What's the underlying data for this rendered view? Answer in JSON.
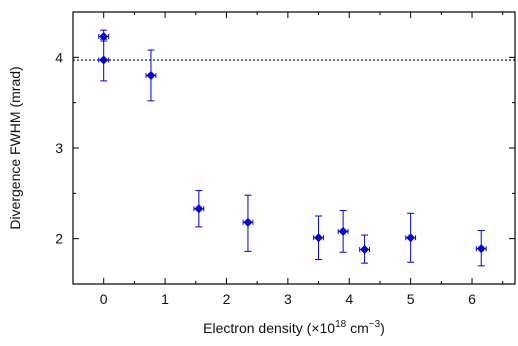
{
  "chart_data": {
    "type": "scatter",
    "xlabel_parts": {
      "prefix": "Electron density (×10",
      "exp1": "18",
      "mid": " cm",
      "exp2": "−3",
      "suffix": ")"
    },
    "ylabel": "Divergence FWHM (mrad)",
    "xlim": [
      -0.5,
      6.7
    ],
    "ylim": [
      1.5,
      4.5
    ],
    "x_ticks": [
      0,
      1,
      2,
      3,
      4,
      5,
      6
    ],
    "y_ticks": [
      2,
      3,
      4
    ],
    "reference_line": {
      "y": 3.97,
      "style": "dotted"
    },
    "grid": false,
    "series": [
      {
        "color": "#0000dd",
        "points": [
          {
            "x": 0.0,
            "y": 4.23,
            "yerr_low": 0.03,
            "yerr_high": 0.07,
            "xerr": 0.08
          },
          {
            "x": 0.0,
            "y": 3.97,
            "yerr_low": 0.23,
            "yerr_high": 0.21,
            "xerr": 0.08
          },
          {
            "x": 0.77,
            "y": 3.8,
            "yerr_low": 0.28,
            "yerr_high": 0.28,
            "xerr": 0.08
          },
          {
            "x": 1.55,
            "y": 2.33,
            "yerr_low": 0.2,
            "yerr_high": 0.2,
            "xerr": 0.08
          },
          {
            "x": 2.35,
            "y": 2.18,
            "yerr_low": 0.32,
            "yerr_high": 0.3,
            "xerr": 0.08
          },
          {
            "x": 3.5,
            "y": 2.01,
            "yerr_low": 0.24,
            "yerr_high": 0.24,
            "xerr": 0.08
          },
          {
            "x": 3.9,
            "y": 2.08,
            "yerr_low": 0.23,
            "yerr_high": 0.23,
            "xerr": 0.08
          },
          {
            "x": 4.25,
            "y": 1.88,
            "yerr_low": 0.15,
            "yerr_high": 0.16,
            "xerr": 0.08
          },
          {
            "x": 5.0,
            "y": 2.01,
            "yerr_low": 0.27,
            "yerr_high": 0.27,
            "xerr": 0.08
          },
          {
            "x": 6.15,
            "y": 1.89,
            "yerr_low": 0.19,
            "yerr_high": 0.2,
            "xerr": 0.08
          }
        ]
      }
    ]
  }
}
